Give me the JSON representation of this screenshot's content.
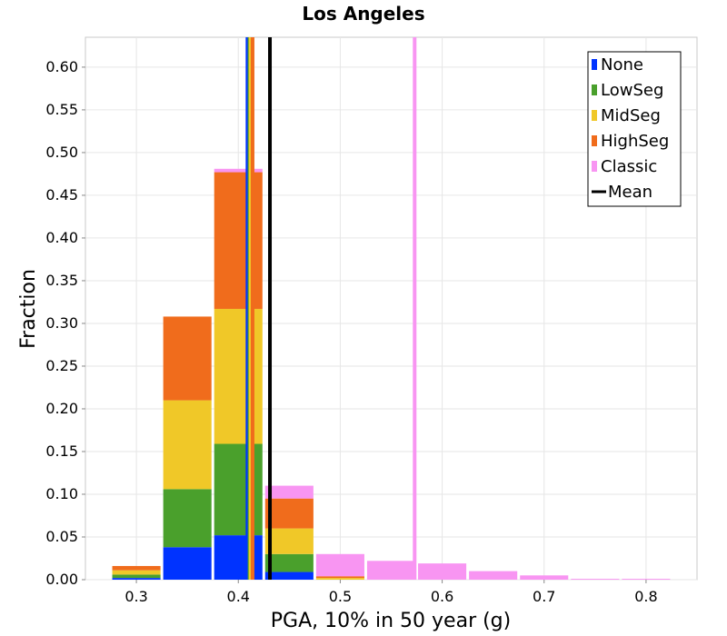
{
  "chart_data": {
    "type": "bar",
    "title": "Los Angeles",
    "xlabel": "PGA, 10% in 50 year (g)",
    "ylabel": "Fraction",
    "xlim": [
      0.25,
      0.85
    ],
    "ylim": [
      0.0,
      0.635
    ],
    "bin_width": 0.05,
    "xticks": [
      "0.3",
      "0.4",
      "0.5",
      "0.6",
      "0.7",
      "0.8"
    ],
    "yticks": [
      "0.00",
      "0.05",
      "0.10",
      "0.15",
      "0.20",
      "0.25",
      "0.30",
      "0.35",
      "0.40",
      "0.45",
      "0.50",
      "0.55",
      "0.60"
    ],
    "bins": [
      0.3,
      0.35,
      0.4,
      0.45,
      0.5,
      0.55,
      0.6,
      0.65,
      0.7,
      0.75,
      0.8
    ],
    "series": [
      {
        "name": "None",
        "color": "#0033ff",
        "values": [
          0.002,
          0.038,
          0.052,
          0.009,
          0,
          0,
          0,
          0,
          0,
          0,
          0
        ]
      },
      {
        "name": "LowSeg",
        "color": "#4aa02c",
        "values": [
          0.004,
          0.068,
          0.107,
          0.021,
          0,
          0,
          0,
          0,
          0,
          0,
          0
        ]
      },
      {
        "name": "MidSeg",
        "color": "#f0c828",
        "values": [
          0.005,
          0.104,
          0.158,
          0.03,
          0.002,
          0,
          0,
          0,
          0,
          0,
          0
        ]
      },
      {
        "name": "HighSeg",
        "color": "#f06c1c",
        "values": [
          0.005,
          0.098,
          0.16,
          0.035,
          0.002,
          0,
          0,
          0,
          0,
          0,
          0
        ]
      },
      {
        "name": "Classic",
        "color": "#f895f2",
        "values": [
          0,
          0,
          0.004,
          0.015,
          0.026,
          0.022,
          0.019,
          0.01,
          0.005,
          0.001,
          0.001
        ]
      }
    ],
    "mean_lines": [
      {
        "name": "None",
        "color": "#0033ff",
        "x": 0.409
      },
      {
        "name": "LowSeg",
        "color": "#4aa02c",
        "x": 0.411
      },
      {
        "name": "MidSeg",
        "color": "#f0c828",
        "x": 0.412
      },
      {
        "name": "HighSeg",
        "color": "#f06c1c",
        "x": 0.414
      },
      {
        "name": "Classic",
        "color": "#f895f2",
        "x": 0.573
      },
      {
        "name": "Mean",
        "color": "#000000",
        "x": 0.431
      }
    ],
    "legend": {
      "position": "top-right",
      "entries": [
        {
          "label": "None",
          "color": "#0033ff"
        },
        {
          "label": "LowSeg",
          "color": "#4aa02c"
        },
        {
          "label": "MidSeg",
          "color": "#f0c828"
        },
        {
          "label": "HighSeg",
          "color": "#f06c1c"
        },
        {
          "label": "Classic",
          "color": "#f895f2"
        },
        {
          "label": "Mean",
          "color": "#000000"
        }
      ]
    },
    "grid": true
  }
}
